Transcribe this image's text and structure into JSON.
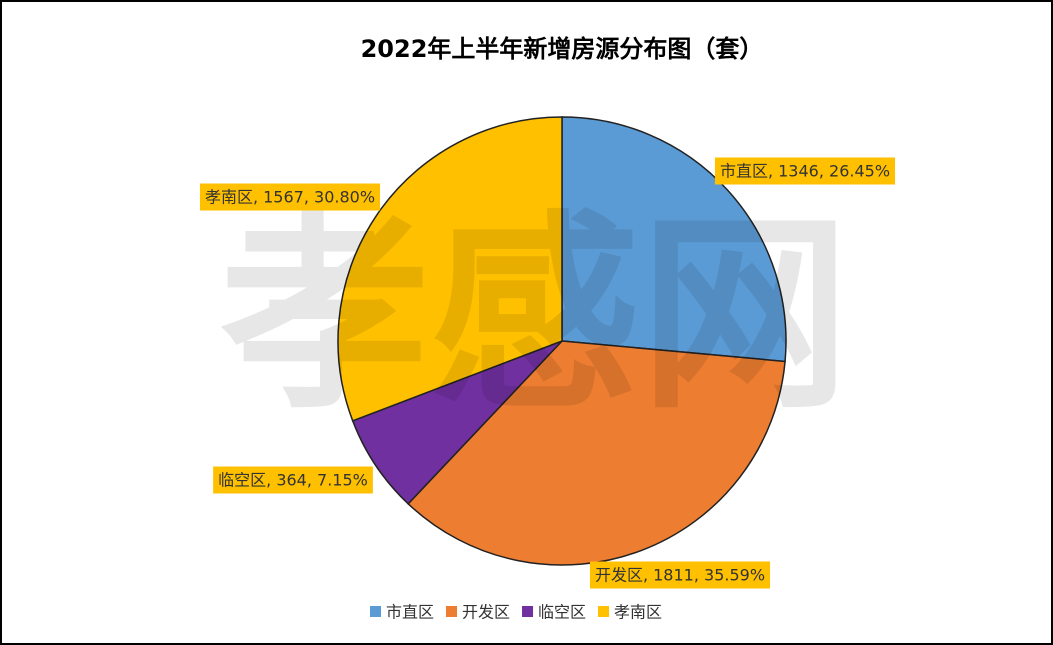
{
  "chart_data": {
    "type": "pie",
    "title": "2022年上半年新增房源分布图（套）",
    "watermark": "孝感网",
    "categories": [
      "市直区",
      "开发区",
      "临空区",
      "孝南区"
    ],
    "values": [
      1346,
      1811,
      364,
      1567
    ],
    "value_labels": [
      "市直区, 1346, 26.45%",
      "开发区, 1811, 35.59%",
      "临空区, 364, 7.15%",
      "孝南区, 1567, 30.80%"
    ],
    "colors": [
      "#5b9bd5",
      "#ed7d31",
      "#7030a0",
      "#ffc000"
    ],
    "legend": "bottom"
  }
}
